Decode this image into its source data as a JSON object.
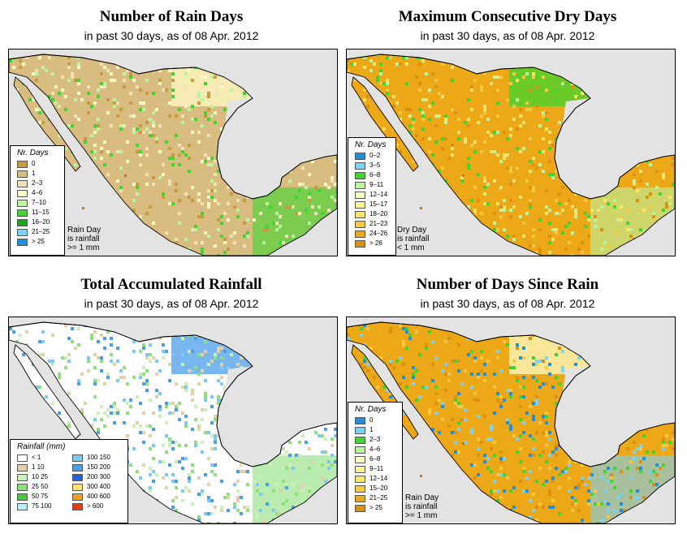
{
  "panels": [
    {
      "title": "Number of Rain Days",
      "subtitle": "in past 30 days, as of  08 Apr. 2012",
      "legend_title": "Nr. Days",
      "legend": [
        {
          "label": "0",
          "color": "#c79a3f"
        },
        {
          "label": "1",
          "color": "#d9bd80"
        },
        {
          "label": "2–3",
          "color": "#f1e3b8"
        },
        {
          "label": "4–6",
          "color": "#fdfbc4"
        },
        {
          "label": "7–10",
          "color": "#baf5a0"
        },
        {
          "label": "11–15",
          "color": "#3ed62e"
        },
        {
          "label": "16–20",
          "color": "#1ea61a"
        },
        {
          "label": "21–25",
          "color": "#7ad2f5"
        },
        {
          "label": "> 25",
          "color": "#1e90dc"
        }
      ],
      "note": [
        "Rain Day",
        "is rainfall",
        ">= 1 mm"
      ]
    },
    {
      "title": "Maximum Consecutive Dry Days",
      "subtitle": "in past 30 days, as of  08 Apr. 2012",
      "legend_title": "Nr. Days",
      "legend": [
        {
          "label": "0–2",
          "color": "#1e90dc"
        },
        {
          "label": "3–5",
          "color": "#7ad2f5"
        },
        {
          "label": "6–8",
          "color": "#3ed62e"
        },
        {
          "label": "9–11",
          "color": "#baf5a0"
        },
        {
          "label": "12–14",
          "color": "#fdfbc4"
        },
        {
          "label": "15–17",
          "color": "#fdf396"
        },
        {
          "label": "18–20",
          "color": "#fde46a"
        },
        {
          "label": "21–23",
          "color": "#f7c840"
        },
        {
          "label": "24–26",
          "color": "#eda818"
        },
        {
          "label": "> 26",
          "color": "#dc8f10"
        }
      ],
      "note": [
        "Dry Day",
        "is rainfall",
        "< 1 mm"
      ]
    },
    {
      "title": "Total Accumulated Rainfall",
      "subtitle": "in past 30 days, as of  08 Apr. 2012",
      "legend_title": "Rainfall (mm)",
      "legend": [
        {
          "label": "< 1",
          "color": "#ffffff"
        },
        {
          "label": "1    10",
          "color": "#e4cfa6"
        },
        {
          "label": "10    25",
          "color": "#c8f0b8"
        },
        {
          "label": "25    50",
          "color": "#8ee07a"
        },
        {
          "label": "50    75",
          "color": "#4cc63e"
        },
        {
          "label": "75    100",
          "color": "#b8eef8"
        },
        {
          "label": "100  150",
          "color": "#7ec8f4"
        },
        {
          "label": "150  200",
          "color": "#4a9ee8"
        },
        {
          "label": "200  300",
          "color": "#2064d6"
        },
        {
          "label": "300  400",
          "color": "#fde46a"
        },
        {
          "label": "400  600",
          "color": "#f0a020"
        },
        {
          "label": "> 600",
          "color": "#e83c10"
        }
      ],
      "note": []
    },
    {
      "title": "Number of Days Since Rain",
      "subtitle": "in past 30 days, as of  08 Apr. 2012",
      "legend_title": "Nr. Days",
      "legend": [
        {
          "label": "0",
          "color": "#1e90dc"
        },
        {
          "label": "1",
          "color": "#7ad2f5"
        },
        {
          "label": "2–3",
          "color": "#3ed62e"
        },
        {
          "label": "4–6",
          "color": "#baf5a0"
        },
        {
          "label": "6–8",
          "color": "#fdfbc4"
        },
        {
          "label": "9–11",
          "color": "#fdf396"
        },
        {
          "label": "12–14",
          "color": "#fde46a"
        },
        {
          "label": "15–20",
          "color": "#f7c840"
        },
        {
          "label": "21–25",
          "color": "#eda818"
        },
        {
          "label": "> 25",
          "color": "#dc8f10"
        }
      ],
      "note": [
        "Rain Day",
        "is rainfall",
        ">= 1 mm"
      ]
    }
  ]
}
